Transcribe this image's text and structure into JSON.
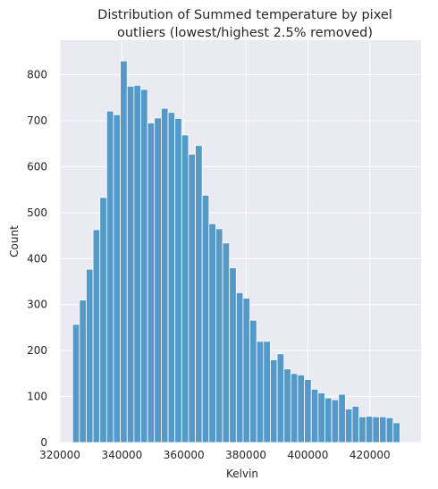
{
  "chart_data": {
    "type": "bar",
    "title": "Distribution of Summed temperature by pixel",
    "subtitle": "outliers (lowest/highest 2.5% removed)",
    "xlabel": "Kelvin",
    "ylabel": "Count",
    "xlim": [
      320000,
      436500
    ],
    "ylim": [
      0,
      875
    ],
    "x_ticks": [
      320000,
      340000,
      360000,
      380000,
      400000,
      420000
    ],
    "y_ticks": [
      0,
      100,
      200,
      300,
      400,
      500,
      600,
      700,
      800
    ],
    "grid": true,
    "background": "#EAEAF2",
    "bar_color": "#5499C7",
    "bin_width": 2200,
    "bin_start": 324100,
    "values": [
      257,
      310,
      377,
      463,
      533,
      721,
      713,
      830,
      775,
      777,
      768,
      695,
      706,
      727,
      718,
      705,
      669,
      627,
      646,
      538,
      476,
      465,
      434,
      380,
      326,
      314,
      266,
      220,
      220,
      180,
      193,
      160,
      150,
      147,
      137,
      116,
      108,
      97,
      93,
      105,
      73,
      79,
      56,
      57,
      56,
      56,
      54,
      43
    ]
  }
}
